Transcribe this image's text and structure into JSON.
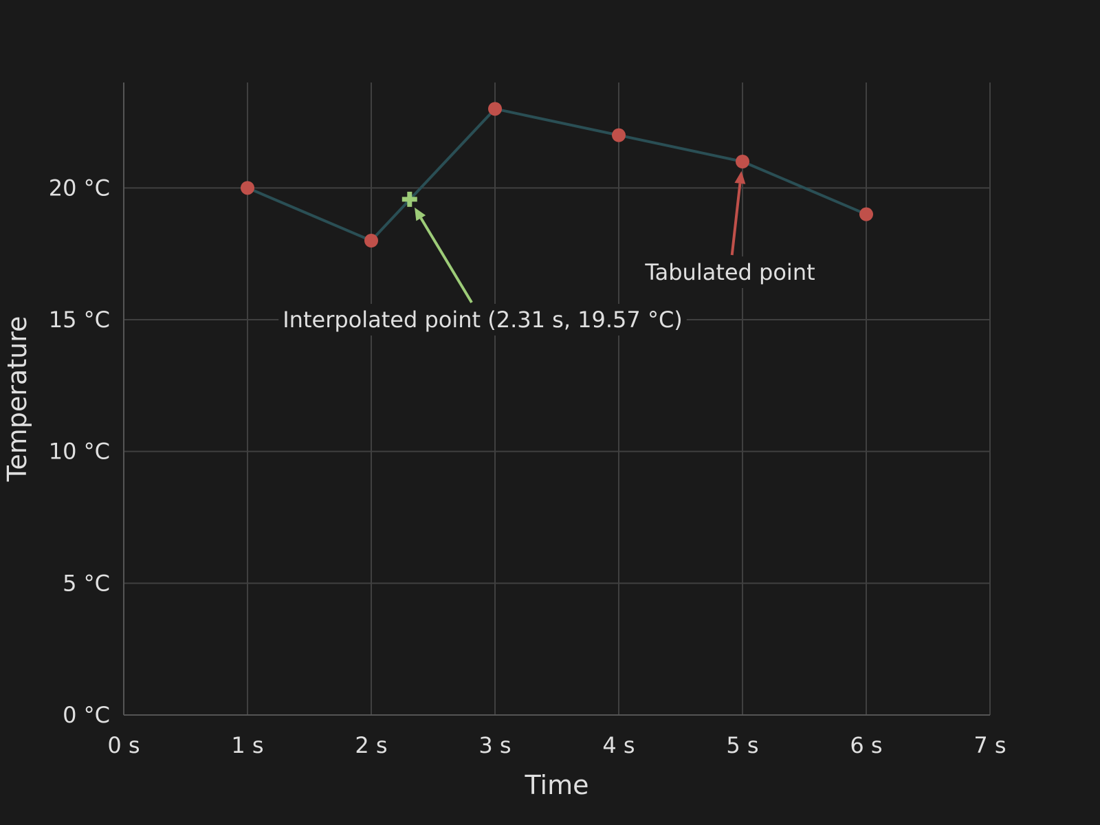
{
  "chart_data": {
    "type": "line",
    "title": "",
    "xlabel": "Time",
    "ylabel": "Temperature",
    "x_unit": "s",
    "y_unit": "°C",
    "xlim": [
      0,
      7
    ],
    "ylim": [
      0,
      24
    ],
    "x_ticks": [
      0,
      1,
      2,
      3,
      4,
      5,
      6,
      7
    ],
    "y_ticks": [
      0,
      5,
      10,
      15,
      20
    ],
    "x_tick_labels": [
      "0 s",
      "1 s",
      "2 s",
      "3 s",
      "4 s",
      "5 s",
      "6 s",
      "7 s"
    ],
    "y_tick_labels": [
      "0 °C",
      "5 °C",
      "10 °C",
      "15 °C",
      "20 °C"
    ],
    "grid": true,
    "series": [
      {
        "name": "Temperature",
        "x": [
          1,
          2,
          3,
          4,
          5,
          6
        ],
        "y": [
          20,
          18,
          23,
          22,
          21,
          19
        ],
        "line_color": "#2a4f55",
        "marker_color": "#c0504a"
      }
    ],
    "interpolated_point": {
      "x": 2.31,
      "y": 19.57,
      "color": "#9dcc78"
    },
    "annotations": [
      {
        "text": "Interpolated point (2.31 s, 19.57 °C)",
        "target_x": 2.31,
        "target_y": 19.57,
        "label_x": 2.9,
        "label_y": 15.0,
        "color": "#9dcc78"
      },
      {
        "text": "Tabulated point",
        "target_x": 5,
        "target_y": 21,
        "label_x": 4.9,
        "label_y": 16.8,
        "color": "#c0504a"
      }
    ]
  }
}
